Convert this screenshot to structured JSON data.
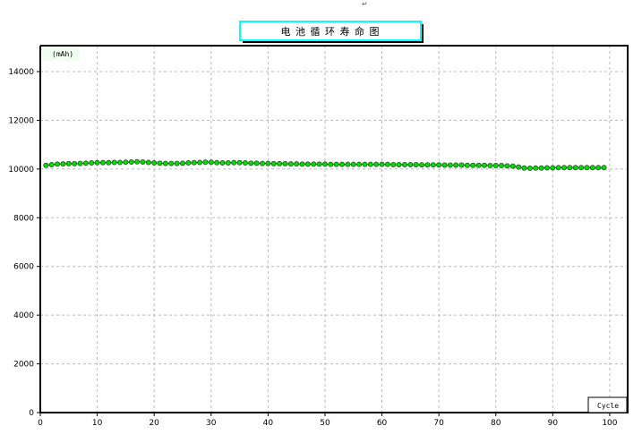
{
  "return_mark": "↵",
  "chart_data": {
    "type": "line",
    "title": "电 池 循 环 寿 命 图",
    "xlabel": "Cycle",
    "ylabel": "(mAh)",
    "xlim": [
      0,
      103
    ],
    "ylim": [
      0,
      15000
    ],
    "x_ticks": [
      0,
      10,
      20,
      30,
      40,
      50,
      60,
      70,
      80,
      90,
      100
    ],
    "y_ticks": [
      0,
      2000,
      4000,
      6000,
      8000,
      10000,
      12000,
      14000
    ],
    "grid": true,
    "marker_color": "#00e000",
    "title_border_color": "#00ffff",
    "x": [
      1,
      2,
      3,
      4,
      5,
      6,
      7,
      8,
      9,
      10,
      11,
      12,
      13,
      14,
      15,
      16,
      17,
      18,
      19,
      20,
      21,
      22,
      23,
      24,
      25,
      26,
      27,
      28,
      29,
      30,
      31,
      32,
      33,
      34,
      35,
      36,
      37,
      38,
      39,
      40,
      41,
      42,
      43,
      44,
      45,
      46,
      47,
      48,
      49,
      50,
      51,
      52,
      53,
      54,
      55,
      56,
      57,
      58,
      59,
      60,
      61,
      62,
      63,
      64,
      65,
      66,
      67,
      68,
      69,
      70,
      71,
      72,
      73,
      74,
      75,
      76,
      77,
      78,
      79,
      80,
      81,
      82,
      83,
      84,
      85,
      86,
      87,
      88,
      89,
      90,
      91,
      92,
      93,
      94,
      95,
      96,
      97,
      98,
      99
    ],
    "values": [
      10150,
      10180,
      10200,
      10210,
      10220,
      10220,
      10230,
      10240,
      10250,
      10260,
      10260,
      10260,
      10270,
      10270,
      10280,
      10290,
      10300,
      10290,
      10270,
      10250,
      10240,
      10230,
      10230,
      10230,
      10240,
      10250,
      10260,
      10270,
      10280,
      10280,
      10260,
      10250,
      10250,
      10260,
      10260,
      10250,
      10240,
      10240,
      10230,
      10230,
      10220,
      10220,
      10220,
      10210,
      10210,
      10200,
      10200,
      10200,
      10200,
      10200,
      10190,
      10190,
      10190,
      10190,
      10190,
      10190,
      10190,
      10190,
      10190,
      10190,
      10190,
      10180,
      10180,
      10180,
      10180,
      10180,
      10170,
      10170,
      10170,
      10170,
      10160,
      10160,
      10160,
      10160,
      10150,
      10150,
      10150,
      10150,
      10140,
      10140,
      10140,
      10130,
      10120,
      10080,
      10040,
      10030,
      10040,
      10040,
      10050,
      10050,
      10060,
      10060,
      10060,
      10060,
      10060,
      10060,
      10060,
      10060,
      10060
    ]
  }
}
